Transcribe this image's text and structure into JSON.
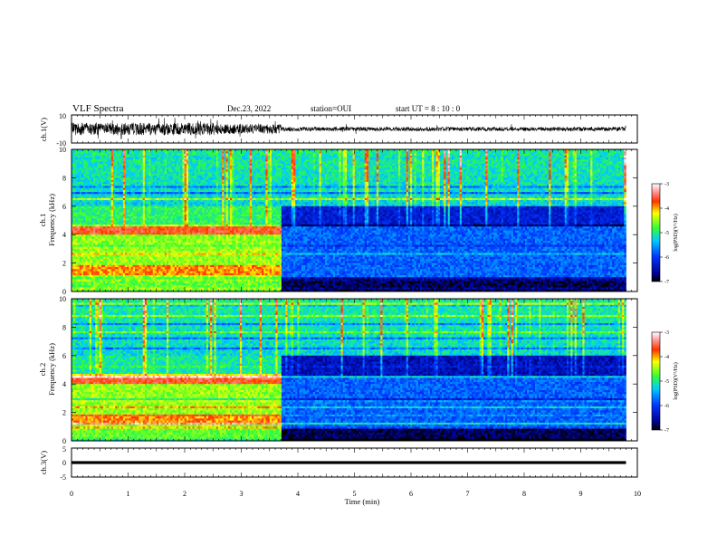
{
  "header": {
    "title": "VLF Spectra",
    "date": "Dec.23, 2022",
    "station": "station=OUI",
    "start": "start  UT =  8 : 10 : 0"
  },
  "chart_data": [
    {
      "type": "line",
      "name_key": "waveform-ch1",
      "ylabel": "ch.1(V)",
      "ylim": [
        -10,
        10
      ],
      "yticks": [
        "10",
        "-10"
      ],
      "xlim": [
        0,
        10
      ],
      "description_values": {
        "segments": [
          {
            "t0": 0.0,
            "t1": 2.6,
            "amplitude_V": 4.5
          },
          {
            "t0": 2.6,
            "t1": 3.7,
            "amplitude_V": 3.5
          },
          {
            "t0": 3.7,
            "t1": 9.8,
            "amplitude_V": 1.5
          }
        ],
        "end_time_min": 9.8
      }
    },
    {
      "type": "heatmap",
      "name_key": "spectrogram-ch1",
      "ylabel": "ch.1\nFrequency (kHz)",
      "ylabel_line1": "ch.1",
      "ylabel_line2": "Frequency (kHz)",
      "ylim": [
        0,
        10
      ],
      "yticks": [
        "0",
        "2",
        "4",
        "6",
        "8",
        "10"
      ],
      "xlim": [
        0,
        10
      ],
      "colorbar": {
        "label": "log(PSD)(V²/Hz)",
        "range": [
          -7,
          -3
        ],
        "ticks": [
          "-3",
          "-4",
          "-5",
          "-6",
          "-7"
        ]
      },
      "data_end_time_min": 9.8
    },
    {
      "type": "heatmap",
      "name_key": "spectrogram-ch2",
      "ylabel_line1": "ch.2",
      "ylabel_line2": "Frequency (kHz)",
      "ylim": [
        0,
        10
      ],
      "yticks": [
        "0",
        "2",
        "4",
        "6",
        "8",
        "10"
      ],
      "xlim": [
        0,
        10
      ],
      "colorbar": {
        "label": "log(PSD)(V²/Hz)",
        "range": [
          -7,
          -3
        ],
        "ticks": [
          "-3",
          "-4",
          "-5",
          "-6",
          "-7"
        ]
      },
      "data_end_time_min": 9.8
    },
    {
      "type": "line",
      "name_key": "waveform-ch3",
      "ylabel": "ch.3(V)",
      "ylim": [
        -5,
        5
      ],
      "yticks": [
        "5",
        "0",
        "-5"
      ],
      "xlim": [
        0,
        10
      ],
      "xlabel": "Time  (min)",
      "xticks": [
        "0",
        "1",
        "2",
        "3",
        "4",
        "5",
        "6",
        "7",
        "8",
        "9",
        "10"
      ],
      "description_values": {
        "level_V": 0,
        "band_half_width_V": 0.5,
        "end_time_min": 9.8
      }
    }
  ]
}
